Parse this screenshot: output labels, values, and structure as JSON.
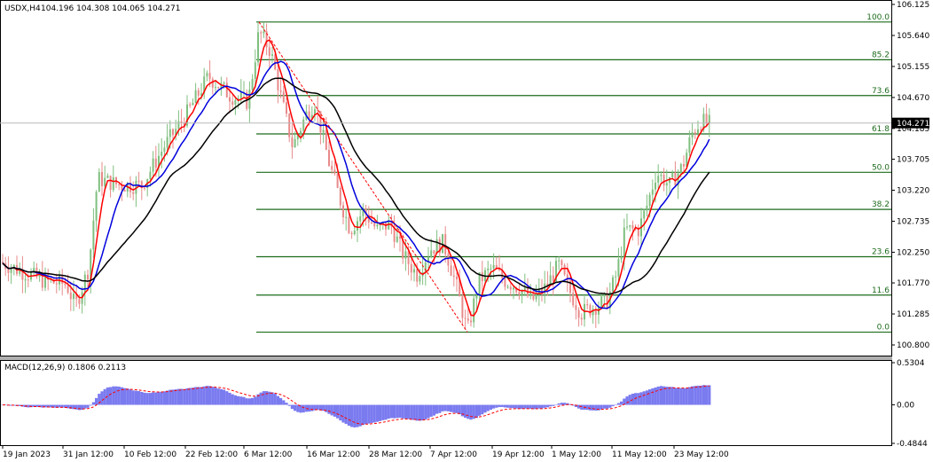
{
  "header": {
    "symbol": "USDX,H4",
    "ohlc": "104.196 104.308 104.065 104.271"
  },
  "main_price_axis": {
    "labels": [
      "106.125",
      "105.640",
      "105.155",
      "104.670",
      "104.185",
      "103.705",
      "103.220",
      "102.735",
      "102.250",
      "101.770",
      "101.285",
      "100.800"
    ],
    "current_price_label": "104.271",
    "current_price": 104.271
  },
  "fibonacci": {
    "levels": [
      {
        "label": "100.0",
        "price": 105.85
      },
      {
        "label": "85.2",
        "price": 105.26
      },
      {
        "label": "73.6",
        "price": 104.7
      },
      {
        "label": "61.8",
        "price": 104.1
      },
      {
        "label": "50.0",
        "price": 103.5
      },
      {
        "label": "38.2",
        "price": 102.92
      },
      {
        "label": "23.6",
        "price": 102.18
      },
      {
        "label": "11.6",
        "price": 101.58
      },
      {
        "label": "0.0",
        "price": 101.0
      }
    ]
  },
  "macd": {
    "title": "MACD(12,26,9) 0.1806 0.2113",
    "axis_labels": [
      "0.5304",
      "0.00",
      "-0.4844"
    ]
  },
  "time_axis": {
    "labels": [
      "19 Jan 2023",
      "31 Jan 12:00",
      "10 Feb 12:00",
      "22 Feb 12:00",
      "6 Mar 12:00",
      "16 Mar 12:00",
      "28 Mar 12:00",
      "7 Apr 12:00",
      "19 Apr 12:00",
      "1 May 12:00",
      "11 May 12:00",
      "23 May 12:00"
    ]
  },
  "colors": {
    "bull": "#7fbf7f",
    "bear": "#e88a8a",
    "ma_fast": "#ff0000",
    "ma_mid": "#0000dd",
    "ma_slow": "#000000",
    "fib": "#1c6b1c",
    "macd_hist": "#7b7bf0",
    "macd_signal": "#ff0000"
  },
  "chart_data": {
    "type": "line",
    "title": "",
    "x": [
      "19 Jan 2023",
      "31 Jan 12:00",
      "10 Feb 12:00",
      "22 Feb 12:00",
      "6 Mar 12:00",
      "16 Mar 12:00",
      "28 Mar 12:00",
      "7 Apr 12:00",
      "19 Apr 12:00",
      "1 May 12:00",
      "11 May 12:00",
      "23 May 12:00"
    ],
    "ylim": [
      100.8,
      106.125
    ],
    "series": [
      {
        "values": [
          102.1,
          101.9,
          103.6,
          104.9,
          105.4,
          104.3,
          102.6,
          101.6,
          101.75,
          101.55,
          103.3,
          104.2
        ]
      }
    ],
    "grid": false,
    "legend": "none"
  }
}
